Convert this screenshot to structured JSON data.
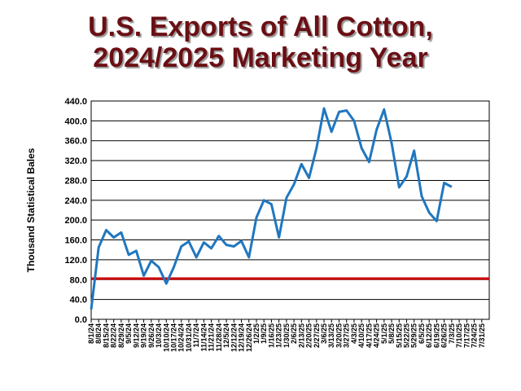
{
  "chart_data": {
    "type": "line",
    "title_line1": "U.S. Exports of All Cotton,",
    "title_line2": "2024/2025 Marketing Year",
    "ylabel": "Thousand  Statistical Bales",
    "xlabel": "",
    "ylim": [
      0,
      440
    ],
    "yticks": [
      "0.0",
      "40.0",
      "80.0",
      "120.0",
      "160.0",
      "200.0",
      "240.0",
      "280.0",
      "320.0",
      "360.0",
      "400.0",
      "440.0"
    ],
    "grid": "horizontal",
    "series_color": "#1f77c0",
    "reference_line": {
      "value": 82,
      "color": "#d00000"
    },
    "x": [
      "8/1/24",
      "8/8/24",
      "8/15/24",
      "8/22/24",
      "8/29/24",
      "9/5/24",
      "9/12/24",
      "9/19/24",
      "9/26/24",
      "10/3/24",
      "10/10/24",
      "10/17/24",
      "10/24/24",
      "10/31/24",
      "11/7/24",
      "11/14/24",
      "11/21/24",
      "11/28/24",
      "12/5/24",
      "12/12/24",
      "12/19/24",
      "12/26/24",
      "1/2/25",
      "1/9/25",
      "1/16/25",
      "1/23/25",
      "1/30/25",
      "2/6/25",
      "2/13/25",
      "2/20/25",
      "2/27/25",
      "3/6/25",
      "3/13/25",
      "3/20/25",
      "3/27/25",
      "4/3/25",
      "4/10/25",
      "4/17/25",
      "4/24/25",
      "5/1/25",
      "5/8/25",
      "5/15/25",
      "5/22/25",
      "5/29/25",
      "6/5/25",
      "6/12/25",
      "6/19/25",
      "6/26/25",
      "7/3/25",
      "7/10/25",
      "7/17/25",
      "7/24/25",
      "7/31/25"
    ],
    "values": [
      20,
      145,
      180,
      165,
      175,
      130,
      138,
      88,
      118,
      105,
      72,
      105,
      147,
      157,
      125,
      155,
      143,
      168,
      150,
      147,
      158,
      125,
      205,
      240,
      232,
      165,
      245,
      272,
      313,
      285,
      345,
      425,
      378,
      418,
      421,
      400,
      345,
      317,
      382,
      423,
      355,
      266,
      288,
      340,
      248,
      215,
      198,
      275,
      267,
      null,
      null,
      null,
      null
    ]
  }
}
